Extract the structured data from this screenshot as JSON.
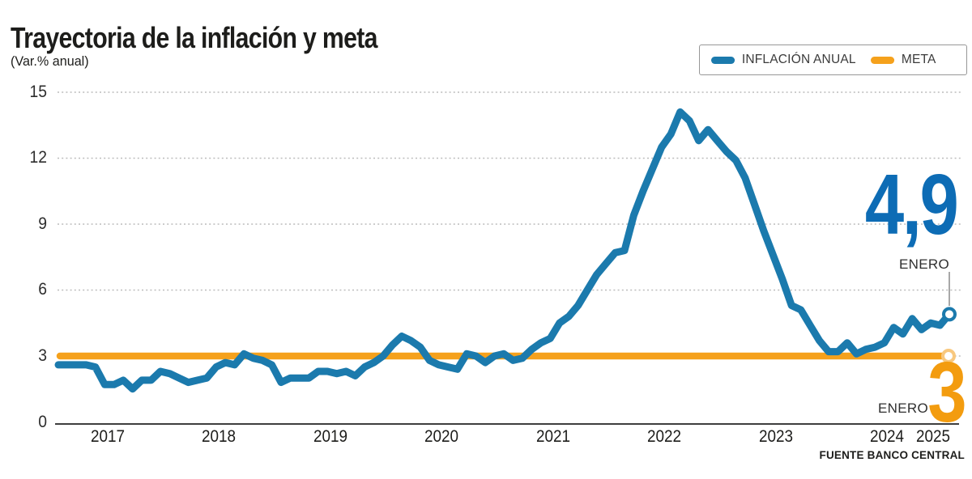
{
  "header": {
    "title": "Trayectoria de la inflación y meta",
    "subtitle": "(Var.% anual)"
  },
  "legend": {
    "items": [
      {
        "label": "INFLACIÓN ANUAL",
        "color": "#1B7AAD"
      },
      {
        "label": "META",
        "color": "#F5A11C"
      }
    ]
  },
  "annotations": {
    "inflation": {
      "value": "4,9",
      "month": "ENERO"
    },
    "meta": {
      "value": "3",
      "month": "ENERO"
    }
  },
  "source": "FUENTE BANCO CENTRAL",
  "chart_data": {
    "type": "line",
    "title": "Trayectoria de la inflación y meta",
    "ylabel": "Var.% anual",
    "ylim": [
      0,
      15
    ],
    "yticks": [
      15,
      12,
      9,
      6,
      3,
      0
    ],
    "xticks": [
      "2017",
      "2018",
      "2019",
      "2020",
      "2021",
      "2022",
      "2023",
      "2024",
      "2025"
    ],
    "grid": "horizontal-dotted",
    "legend_position": "top-right",
    "series": [
      {
        "name": "INFLACIÓN ANUAL",
        "color": "#1B7AAD",
        "frequency": "monthly",
        "x_start": "2017-01",
        "x_end": "2025-01",
        "values": [
          2.6,
          2.6,
          2.6,
          2.6,
          2.5,
          1.7,
          1.7,
          1.9,
          1.5,
          1.9,
          1.9,
          2.3,
          2.2,
          2.0,
          1.8,
          1.9,
          2.0,
          2.5,
          2.7,
          2.6,
          3.1,
          2.9,
          2.8,
          2.6,
          1.8,
          2.0,
          2.0,
          2.0,
          2.3,
          2.3,
          2.2,
          2.3,
          2.1,
          2.5,
          2.7,
          3.0,
          3.5,
          3.9,
          3.7,
          3.4,
          2.8,
          2.6,
          2.5,
          2.4,
          3.1,
          3.0,
          2.7,
          3.0,
          3.1,
          2.8,
          2.9,
          3.3,
          3.6,
          3.8,
          4.5,
          4.8,
          5.3,
          6.0,
          6.7,
          7.2,
          7.7,
          7.8,
          9.4,
          10.5,
          11.5,
          12.5,
          13.1,
          14.1,
          13.7,
          12.8,
          13.3,
          12.8,
          12.3,
          11.9,
          11.1,
          9.9,
          8.7,
          7.6,
          6.5,
          5.3,
          5.1,
          4.4,
          3.7,
          3.2,
          3.2,
          3.6,
          3.1,
          3.3,
          3.4,
          3.6,
          4.3,
          4.0,
          4.7,
          4.2,
          4.5,
          4.4,
          4.9
        ],
        "end_point": {
          "label": "ENERO",
          "value": 4.9,
          "display": "4,9"
        }
      },
      {
        "name": "META",
        "color": "#F5A11C",
        "value": 3,
        "end_point": {
          "label": "ENERO",
          "value": 3,
          "display": "3"
        }
      }
    ]
  }
}
